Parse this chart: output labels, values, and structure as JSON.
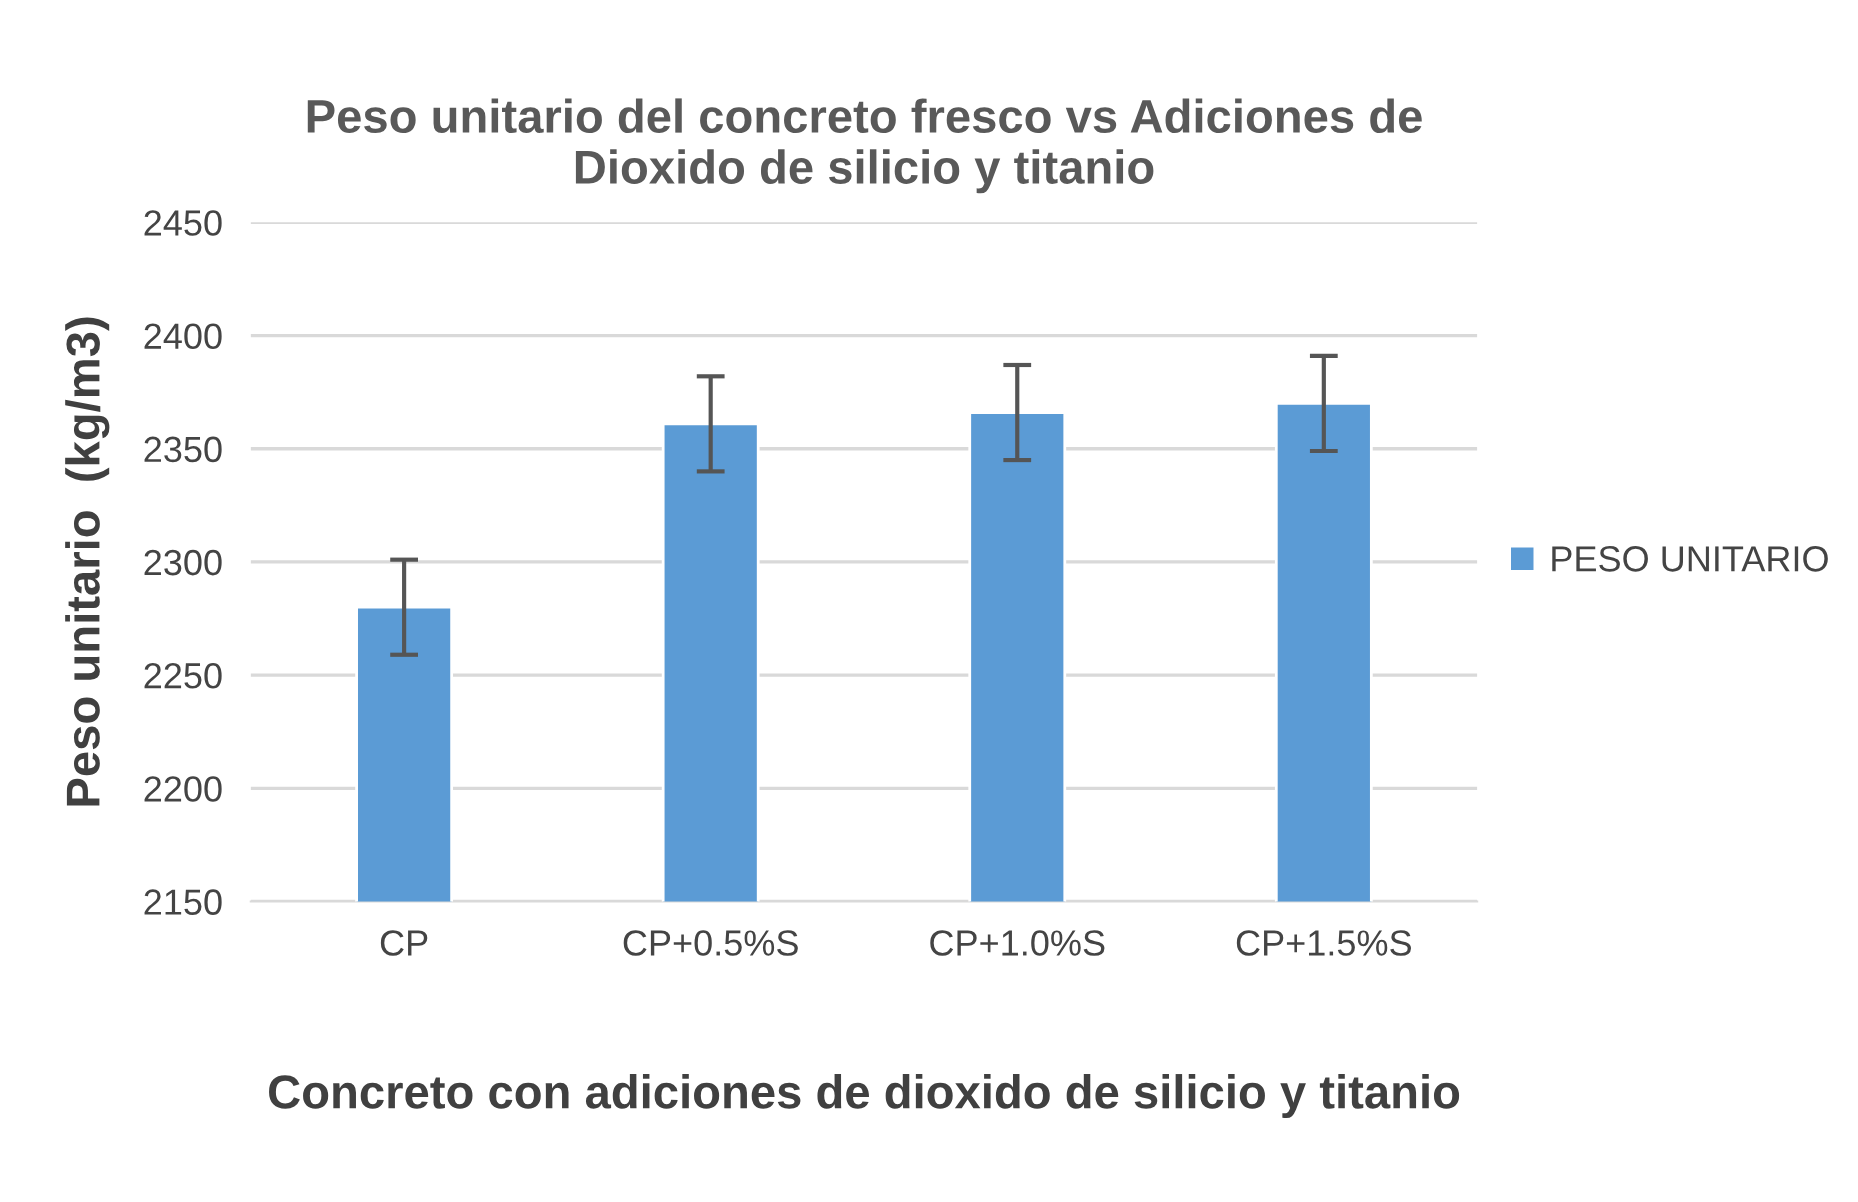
{
  "chart_data": {
    "type": "bar",
    "title": "Peso unitario del concreto fresco vs Adiciones de\nDioxido de silicio y titanio",
    "xlabel": "Concreto con adiciones de dioxido de silicio y titanio",
    "ylabel": "Peso unitario  (kg/m3)",
    "categories": [
      "CP",
      "CP+0.5%S",
      "CP+1.0%S",
      "CP+1.5%S"
    ],
    "series": [
      {
        "name": "PESO UNITARIO",
        "color": "#5b9bd5",
        "values": [
          2280,
          2361,
          2366,
          2370
        ],
        "errors": [
          21,
          21,
          21,
          21
        ]
      }
    ],
    "ylim": [
      2150,
      2450
    ],
    "yticks": [
      2150,
      2200,
      2250,
      2300,
      2350,
      2400,
      2450
    ],
    "grid": "y",
    "legend": "right"
  }
}
